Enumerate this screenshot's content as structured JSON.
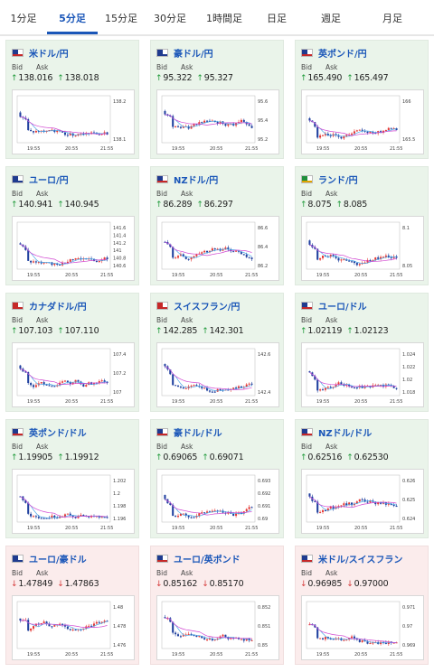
{
  "tabs": [
    {
      "label": "1分足",
      "active": false
    },
    {
      "label": "5分足",
      "active": true
    },
    {
      "label": "15分足",
      "active": false
    },
    {
      "label": "30分足",
      "active": false
    },
    {
      "label": "1時間足",
      "active": false
    },
    {
      "label": "日足",
      "active": false
    },
    {
      "label": "週足",
      "active": false
    },
    {
      "label": "月足",
      "active": false
    }
  ],
  "labels": {
    "bid": "Bid",
    "ask": "Ask"
  },
  "colors": {
    "up": "#1f9a3a",
    "down": "#d63a3a",
    "candle_up": "#e53935",
    "candle_down": "#1e3f9e",
    "ma_short": "#4aa7e8",
    "ma_long": "#d043d0",
    "pair_text": "#1a56b8"
  },
  "pairs": [
    {
      "name": "米ドル/円",
      "flag": "us",
      "dir": "up",
      "bid": "138.016",
      "ask": "138.018",
      "y_ticks": [
        "138.2",
        "138.1"
      ],
      "x_ticks": [
        "19:55",
        "20:55",
        "21:55"
      ]
    },
    {
      "name": "豪ドル/円",
      "flag": "au",
      "dir": "up",
      "bid": "95.322",
      "ask": "95.327",
      "y_ticks": [
        "95.6",
        "95.4",
        "95.2"
      ],
      "x_ticks": [
        "19:55",
        "20:55",
        "21:55"
      ]
    },
    {
      "name": "英ポンド/円",
      "flag": "uk",
      "dir": "up",
      "bid": "165.490",
      "ask": "165.497",
      "y_ticks": [
        "166",
        "165.5"
      ],
      "x_ticks": [
        "19:55",
        "20:55",
        "21:55"
      ]
    },
    {
      "name": "ユーロ/円",
      "flag": "eu",
      "dir": "up",
      "bid": "140.941",
      "ask": "140.945",
      "y_ticks": [
        "141.6",
        "141.4",
        "141.2",
        "141",
        "140.8",
        "140.6"
      ],
      "x_ticks": [
        "19:55",
        "20:55",
        "21:55"
      ]
    },
    {
      "name": "NZドル/円",
      "flag": "nz",
      "dir": "up",
      "bid": "86.289",
      "ask": "86.297",
      "y_ticks": [
        "86.6",
        "86.4",
        "86.2"
      ],
      "x_ticks": [
        "19:55",
        "20:55",
        "21:55"
      ]
    },
    {
      "name": "ランド/円",
      "flag": "za",
      "dir": "up",
      "bid": "8.075",
      "ask": "8.085",
      "y_ticks": [
        "8.1",
        "8.05"
      ],
      "x_ticks": [
        "19:55",
        "20:55",
        "21:55"
      ]
    },
    {
      "name": "カナダドル/円",
      "flag": "ca",
      "dir": "up",
      "bid": "107.103",
      "ask": "107.110",
      "y_ticks": [
        "107.4",
        "107.2",
        "107"
      ],
      "x_ticks": [
        "19:55",
        "20:55",
        "21:55"
      ]
    },
    {
      "name": "スイスフラン/円",
      "flag": "ch",
      "dir": "up",
      "bid": "142.285",
      "ask": "142.301",
      "y_ticks": [
        "142.6",
        "142.4"
      ],
      "x_ticks": [
        "19:55",
        "20:55",
        "21:55"
      ]
    },
    {
      "name": "ユーロ/ドル",
      "flag": "euus",
      "dir": "up",
      "bid": "1.02119",
      "ask": "1.02123",
      "y_ticks": [
        "1.024",
        "1.022",
        "1.02",
        "1.018"
      ],
      "x_ticks": [
        "19:55",
        "20:55",
        "21:55"
      ]
    },
    {
      "name": "英ポンド/ドル",
      "flag": "ukus",
      "dir": "up",
      "bid": "1.19905",
      "ask": "1.19912",
      "y_ticks": [
        "1.202",
        "1.2",
        "1.198",
        "1.196"
      ],
      "x_ticks": [
        "19:55",
        "20:55",
        "21:55"
      ]
    },
    {
      "name": "豪ドル/ドル",
      "flag": "auus",
      "dir": "up",
      "bid": "0.69065",
      "ask": "0.69071",
      "y_ticks": [
        "0.693",
        "0.692",
        "0.691",
        "0.69"
      ],
      "x_ticks": [
        "19:55",
        "20:55",
        "21:55"
      ]
    },
    {
      "name": "NZドル/ドル",
      "flag": "nzus",
      "dir": "up",
      "bid": "0.62516",
      "ask": "0.62530",
      "y_ticks": [
        "0.626",
        "0.625",
        "0.624"
      ],
      "x_ticks": [
        "19:55",
        "20:55",
        "21:55"
      ]
    },
    {
      "name": "ユーロ/豪ドル",
      "flag": "euau",
      "dir": "down",
      "bid": "1.47849",
      "ask": "1.47863",
      "y_ticks": [
        "1.48",
        "1.478",
        "1.476"
      ],
      "x_ticks": [
        "19:55",
        "20:55",
        "21:55"
      ]
    },
    {
      "name": "ユーロ/英ポンド",
      "flag": "euuk",
      "dir": "down",
      "bid": "0.85162",
      "ask": "0.85170",
      "y_ticks": [
        "0.852",
        "0.851",
        "0.85"
      ],
      "x_ticks": [
        "19:55",
        "20:55",
        "21:55"
      ]
    },
    {
      "name": "米ドル/スイスフラン",
      "flag": "usch",
      "dir": "down",
      "bid": "0.96985",
      "ask": "0.97000",
      "y_ticks": [
        "0.971",
        "0.97",
        "0.969"
      ],
      "x_ticks": [
        "19:55",
        "20:55",
        "21:55"
      ]
    }
  ]
}
